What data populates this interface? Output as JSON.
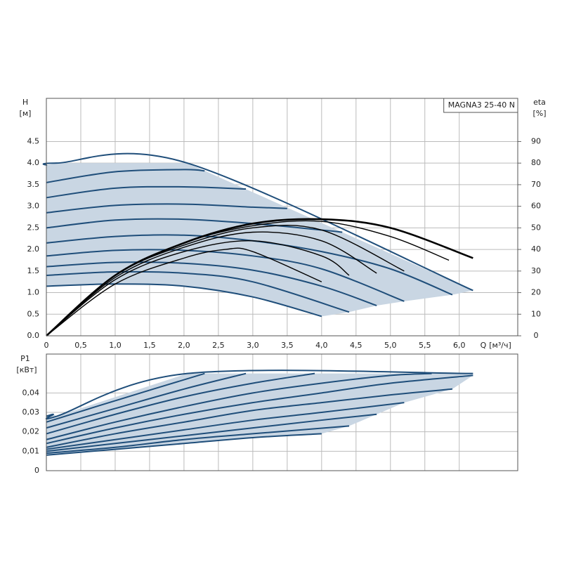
{
  "chart_data": [
    {
      "type": "line",
      "title": "MAGNA3 25-40 N",
      "y_label": "H",
      "y_unit": "[м]",
      "y2_label": "eta",
      "y2_unit": "[%]",
      "x_label": "Q",
      "x_unit": "[м³/ч]",
      "xlim": [
        0,
        6.85
      ],
      "ylim": [
        0,
        5.5
      ],
      "y2lim": [
        0,
        110
      ],
      "xticks": [
        0,
        {
          "value": 0.5,
          "label": "0,5"
        },
        {
          "value": 1,
          "label": "1,0"
        },
        {
          "value": 1.5,
          "label": "1,5"
        },
        {
          "value": 2,
          "label": "2,0"
        },
        {
          "value": 2.5,
          "label": "2,5"
        },
        {
          "value": 3,
          "label": "3,0"
        },
        {
          "value": 3.5,
          "label": "3,5"
        },
        {
          "value": 4,
          "label": "4,0"
        },
        {
          "value": 4.5,
          "label": "4,5"
        },
        {
          "value": 5,
          "label": "5,0"
        },
        {
          "value": 5.5,
          "label": "5,5"
        },
        {
          "value": 6,
          "label": "6,0"
        }
      ],
      "yticks": [
        {
          "value": 0,
          "label": "0.0"
        },
        0.5,
        {
          "value": 1,
          "label": "1.0"
        },
        1.5,
        {
          "value": 2,
          "label": "2.0"
        },
        2.5,
        {
          "value": 3,
          "label": "3.0"
        },
        3.5,
        {
          "value": 4,
          "label": "4.0"
        },
        4.5
      ],
      "y2ticks": [
        0,
        10,
        20,
        30,
        40,
        50,
        60,
        70,
        80,
        90
      ],
      "grid": true,
      "area_color": "#c9d6e3",
      "series": [
        {
          "color": "#1f4e7a",
          "x": [
            0,
            0.15,
            2.05,
            6.2
          ],
          "values": [
            3.95,
            4,
            4,
            1.05
          ]
        },
        {
          "color": "#1f4e7a",
          "x": [
            0,
            1,
            2,
            2.3
          ],
          "values": [
            3.55,
            3.8,
            3.85,
            3.82
          ]
        },
        {
          "color": "#1f4e7a",
          "x": [
            0,
            1,
            2,
            2.9
          ],
          "values": [
            3.2,
            3.42,
            3.45,
            3.4
          ]
        },
        {
          "color": "#1f4e7a",
          "x": [
            0,
            1,
            2,
            3,
            3.5
          ],
          "values": [
            2.85,
            3.02,
            3.05,
            2.98,
            2.95
          ]
        },
        {
          "color": "#1f4e7a",
          "x": [
            0,
            1,
            2,
            3,
            4,
            4.3
          ],
          "values": [
            2.5,
            2.68,
            2.7,
            2.6,
            2.45,
            2.4
          ]
        },
        {
          "color": "#1f4e7a",
          "x": [
            0,
            1,
            2,
            3,
            4,
            5,
            5.9
          ],
          "values": [
            2.15,
            2.3,
            2.33,
            2.2,
            1.95,
            1.55,
            0.95
          ]
        },
        {
          "color": "#1f4e7a",
          "x": [
            0,
            1,
            2,
            3,
            4,
            5.2
          ],
          "values": [
            1.85,
            1.98,
            1.98,
            1.85,
            1.55,
            0.8
          ]
        },
        {
          "color": "#1f4e7a",
          "x": [
            0,
            1,
            2,
            3,
            4,
            4.8
          ],
          "values": [
            1.6,
            1.7,
            1.68,
            1.52,
            1.15,
            0.7
          ]
        },
        {
          "color": "#1f4e7a",
          "x": [
            0,
            1,
            2,
            3,
            4.4
          ],
          "values": [
            1.4,
            1.48,
            1.45,
            1.25,
            0.55
          ]
        },
        {
          "color": "#1f4e7a",
          "x": [
            0,
            1,
            2,
            3,
            4
          ],
          "values": [
            1.15,
            1.2,
            1.15,
            0.9,
            0.45
          ]
        },
        {
          "color": "#000000",
          "axis": "y2",
          "x": [
            0,
            1,
            2,
            3,
            4,
            5,
            6.2
          ],
          "values": [
            0,
            28,
            43,
            52,
            54,
            50,
            36
          ]
        },
        {
          "color": "#000000",
          "axis": "y2",
          "x": [
            0,
            1,
            2,
            3,
            4,
            5,
            5.85
          ],
          "values": [
            0,
            28,
            43,
            51,
            53,
            46,
            35
          ]
        },
        {
          "color": "#000000",
          "axis": "y2",
          "x": [
            0,
            1,
            2,
            3,
            4,
            5.2
          ],
          "values": [
            0,
            28,
            42,
            50,
            49,
            30
          ]
        },
        {
          "color": "#000000",
          "axis": "y2",
          "x": [
            0,
            1,
            2,
            3,
            4,
            4.8
          ],
          "values": [
            0,
            27,
            41,
            48,
            44,
            29
          ]
        },
        {
          "color": "#000000",
          "axis": "y2",
          "x": [
            0,
            1,
            2,
            3,
            4,
            4.4
          ],
          "values": [
            0,
            26,
            39,
            44,
            37,
            28
          ]
        },
        {
          "color": "#000000",
          "axis": "y2",
          "x": [
            0,
            1,
            2,
            2.6,
            3,
            4
          ],
          "values": [
            0,
            24,
            36,
            40,
            39,
            25
          ]
        }
      ]
    },
    {
      "type": "line",
      "y_label": "P1",
      "y_unit": "[кВт]",
      "xlim": [
        0,
        6.85
      ],
      "ylim": [
        0,
        0.06
      ],
      "xticks": [
        0,
        0.5,
        1,
        1.5,
        2,
        2.5,
        3,
        3.5,
        4,
        4.5,
        5,
        5.5,
        6
      ],
      "yticks": [
        0,
        {
          "value": 0.01,
          "label": "0,01"
        },
        {
          "value": 0.02,
          "label": "0,02"
        },
        {
          "value": 0.03,
          "label": "0,03"
        },
        {
          "value": 0.04,
          "label": "0,04"
        }
      ],
      "grid": true,
      "area_color": "#c9d6e3",
      "series": [
        {
          "color": "#1f4e7a",
          "x": [
            0,
            0.1,
            0.15,
            2.05,
            6.2
          ],
          "values": [
            0.028,
            0.029,
            0.028,
            0.05,
            0.05
          ]
        },
        {
          "color": "#1f4e7a",
          "x": [
            0,
            1,
            2.3
          ],
          "values": [
            0.025,
            0.036,
            0.05
          ]
        },
        {
          "color": "#1f4e7a",
          "x": [
            0,
            1,
            2,
            2.9
          ],
          "values": [
            0.022,
            0.032,
            0.042,
            0.05
          ]
        },
        {
          "color": "#1f4e7a",
          "x": [
            0,
            1,
            2,
            3,
            3.9
          ],
          "values": [
            0.019,
            0.029,
            0.038,
            0.045,
            0.05
          ]
        },
        {
          "color": "#1f4e7a",
          "x": [
            0,
            1,
            2,
            3,
            4,
            5,
            5.6
          ],
          "values": [
            0.016,
            0.025,
            0.033,
            0.04,
            0.045,
            0.049,
            0.05
          ]
        },
        {
          "color": "#1f4e7a",
          "x": [
            0,
            1,
            2,
            3,
            4,
            5,
            6.2
          ],
          "values": [
            0.014,
            0.022,
            0.029,
            0.035,
            0.04,
            0.045,
            0.049
          ]
        },
        {
          "color": "#1f4e7a",
          "x": [
            0,
            1,
            2,
            3,
            4,
            5,
            5.9
          ],
          "values": [
            0.012,
            0.019,
            0.025,
            0.031,
            0.035,
            0.039,
            0.042
          ]
        },
        {
          "color": "#1f4e7a",
          "x": [
            0,
            1,
            2,
            3,
            4,
            5.2
          ],
          "values": [
            0.011,
            0.016,
            0.021,
            0.026,
            0.03,
            0.035
          ]
        },
        {
          "color": "#1f4e7a",
          "x": [
            0,
            1,
            2,
            3,
            4,
            4.8
          ],
          "values": [
            0.01,
            0.014,
            0.018,
            0.022,
            0.026,
            0.029
          ]
        },
        {
          "color": "#1f4e7a",
          "x": [
            0,
            1,
            2,
            3,
            4.4
          ],
          "values": [
            0.009,
            0.012,
            0.016,
            0.019,
            0.023
          ]
        },
        {
          "color": "#1f4e7a",
          "x": [
            0,
            1,
            2,
            3,
            4
          ],
          "values": [
            0.008,
            0.011,
            0.014,
            0.017,
            0.019
          ]
        }
      ]
    }
  ]
}
